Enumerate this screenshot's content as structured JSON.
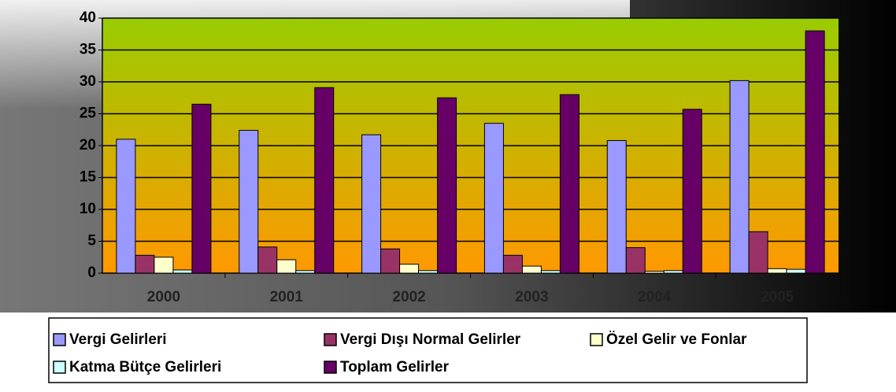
{
  "chart_data": {
    "type": "bar",
    "categories": [
      "2000",
      "2001",
      "2002",
      "2003",
      "2004",
      "2005"
    ],
    "series": [
      {
        "name": "Vergi Gelirleri",
        "color": "#9999ff",
        "values": [
          21,
          22.4,
          21.7,
          23.5,
          20.8,
          30.2
        ]
      },
      {
        "name": "Vergi Dışı Normal Gelirler",
        "color": "#993366",
        "values": [
          2.8,
          4.1,
          3.8,
          2.8,
          4.0,
          6.5
        ]
      },
      {
        "name": "Özel Gelir ve Fonlar",
        "color": "#ffffcc",
        "values": [
          2.5,
          2.1,
          1.4,
          1.1,
          0.3,
          0.7
        ]
      },
      {
        "name": "Katma Bütçe Gelirleri",
        "color": "#ccffff",
        "values": [
          0.5,
          0.4,
          0.4,
          0.4,
          0.4,
          0.6
        ]
      },
      {
        "name": "Toplam Gelirler",
        "color": "#660066",
        "values": [
          26.5,
          29.1,
          27.5,
          28.0,
          25.7,
          38.0
        ]
      }
    ],
    "ylim": [
      0,
      40
    ],
    "yticks": [
      0,
      5,
      10,
      15,
      20,
      25,
      30,
      35,
      40
    ],
    "grid": true,
    "legend": "bottom"
  }
}
